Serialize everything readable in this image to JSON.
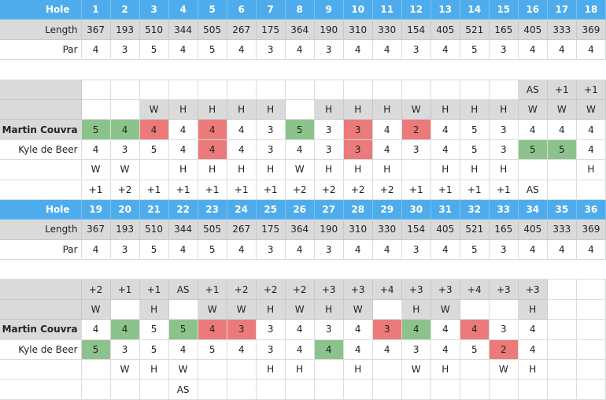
{
  "colors": {
    "header": "#4eacec",
    "length_row": "#dadada",
    "under_par": "#8cc38c",
    "over_par": "#ec7a7a"
  },
  "labels": {
    "hole": "Hole",
    "length": "Length",
    "par": "Par"
  },
  "players": {
    "p1": "Martin Couvra",
    "p2": "Kyle de Beer"
  },
  "front": {
    "holes": [
      "1",
      "2",
      "3",
      "4",
      "5",
      "6",
      "7",
      "8",
      "9",
      "10",
      "11",
      "12",
      "13",
      "14",
      "15",
      "16",
      "17",
      "18"
    ],
    "length": [
      "367",
      "193",
      "510",
      "344",
      "505",
      "267",
      "175",
      "364",
      "190",
      "310",
      "330",
      "154",
      "405",
      "521",
      "165",
      "405",
      "333",
      "369"
    ],
    "par": [
      "4",
      "3",
      "5",
      "4",
      "5",
      "4",
      "3",
      "4",
      "3",
      "4",
      "4",
      "3",
      "4",
      "5",
      "3",
      "4",
      "4",
      "4"
    ],
    "top_status": [
      "",
      "",
      "",
      "",
      "",
      "",
      "",
      "",
      "",
      "",
      "",
      "",
      "",
      "",
      "",
      "AS",
      "+1",
      "+1"
    ],
    "top_winner": [
      "",
      "",
      "W",
      "H",
      "H",
      "H",
      "H",
      "",
      "H",
      "H",
      "H",
      "W",
      "H",
      "H",
      "H",
      "W",
      "W",
      "W"
    ],
    "p1_scores": [
      "5",
      "4",
      "4",
      "4",
      "4",
      "4",
      "3",
      "5",
      "3",
      "3",
      "4",
      "2",
      "4",
      "5",
      "3",
      "4",
      "4",
      "4"
    ],
    "p1_marks": [
      "green",
      "green",
      "red",
      "",
      "red",
      "",
      "",
      "green",
      "",
      "red",
      "",
      "red",
      "",
      "",
      "",
      "",
      "",
      ""
    ],
    "p2_scores": [
      "4",
      "3",
      "5",
      "4",
      "4",
      "4",
      "3",
      "4",
      "3",
      "3",
      "4",
      "3",
      "4",
      "5",
      "3",
      "5",
      "5",
      "4"
    ],
    "p2_marks": [
      "",
      "",
      "",
      "",
      "red",
      "",
      "",
      "",
      "",
      "red",
      "",
      "",
      "",
      "",
      "",
      "green",
      "green",
      ""
    ],
    "bottom_winner": [
      "W",
      "W",
      "",
      "H",
      "H",
      "H",
      "H",
      "W",
      "H",
      "H",
      "H",
      "",
      "H",
      "H",
      "H",
      "",
      "",
      "H"
    ],
    "bottom_status": [
      "+1",
      "+2",
      "+1",
      "+1",
      "+1",
      "+1",
      "+1",
      "+2",
      "+2",
      "+2",
      "+2",
      "+1",
      "+1",
      "+1",
      "+1",
      "AS",
      "",
      ""
    ]
  },
  "back": {
    "holes": [
      "19",
      "20",
      "21",
      "22",
      "23",
      "24",
      "25",
      "26",
      "27",
      "28",
      "29",
      "30",
      "31",
      "32",
      "33",
      "34",
      "35",
      "36"
    ],
    "length": [
      "367",
      "193",
      "510",
      "344",
      "505",
      "267",
      "175",
      "364",
      "190",
      "310",
      "330",
      "154",
      "405",
      "521",
      "165",
      "405",
      "333",
      "369"
    ],
    "par": [
      "4",
      "3",
      "5",
      "4",
      "5",
      "4",
      "3",
      "4",
      "3",
      "4",
      "4",
      "3",
      "4",
      "5",
      "3",
      "4",
      "4",
      "4"
    ],
    "top_status": [
      "+2",
      "+1",
      "+1",
      "AS",
      "+1",
      "+2",
      "+2",
      "+2",
      "+3",
      "+3",
      "+4",
      "+3",
      "+3",
      "+4",
      "+3",
      "+3",
      "",
      ""
    ],
    "top_winner": [
      "W",
      "",
      "H",
      "",
      "W",
      "W",
      "H",
      "W",
      "H",
      "W",
      "",
      "H",
      "W",
      "",
      "",
      "H",
      "",
      ""
    ],
    "p1_scores": [
      "4",
      "4",
      "5",
      "5",
      "4",
      "3",
      "3",
      "4",
      "3",
      "4",
      "3",
      "4",
      "4",
      "4",
      "3",
      "4",
      "",
      ""
    ],
    "p1_marks": [
      "",
      "green",
      "",
      "green",
      "red",
      "red",
      "",
      "",
      "",
      "",
      "red",
      "green",
      "",
      "red",
      "",
      "",
      "",
      ""
    ],
    "p2_scores": [
      "5",
      "3",
      "5",
      "4",
      "5",
      "4",
      "3",
      "4",
      "4",
      "4",
      "4",
      "3",
      "4",
      "5",
      "2",
      "4",
      "",
      ""
    ],
    "p2_marks": [
      "green",
      "",
      "",
      "",
      "",
      "",
      "",
      "",
      "green",
      "",
      "",
      "",
      "",
      "",
      "red",
      "",
      "",
      ""
    ],
    "bottom_winner": [
      "",
      "W",
      "H",
      "W",
      "",
      "",
      "H",
      "H",
      "",
      "H",
      "",
      "W",
      "H",
      "",
      "W",
      "H",
      "",
      ""
    ],
    "bottom_status": [
      "",
      "",
      "",
      "AS",
      "",
      "",
      "",
      "",
      "",
      "",
      "",
      "",
      "",
      "",
      "",
      "",
      "",
      ""
    ]
  }
}
